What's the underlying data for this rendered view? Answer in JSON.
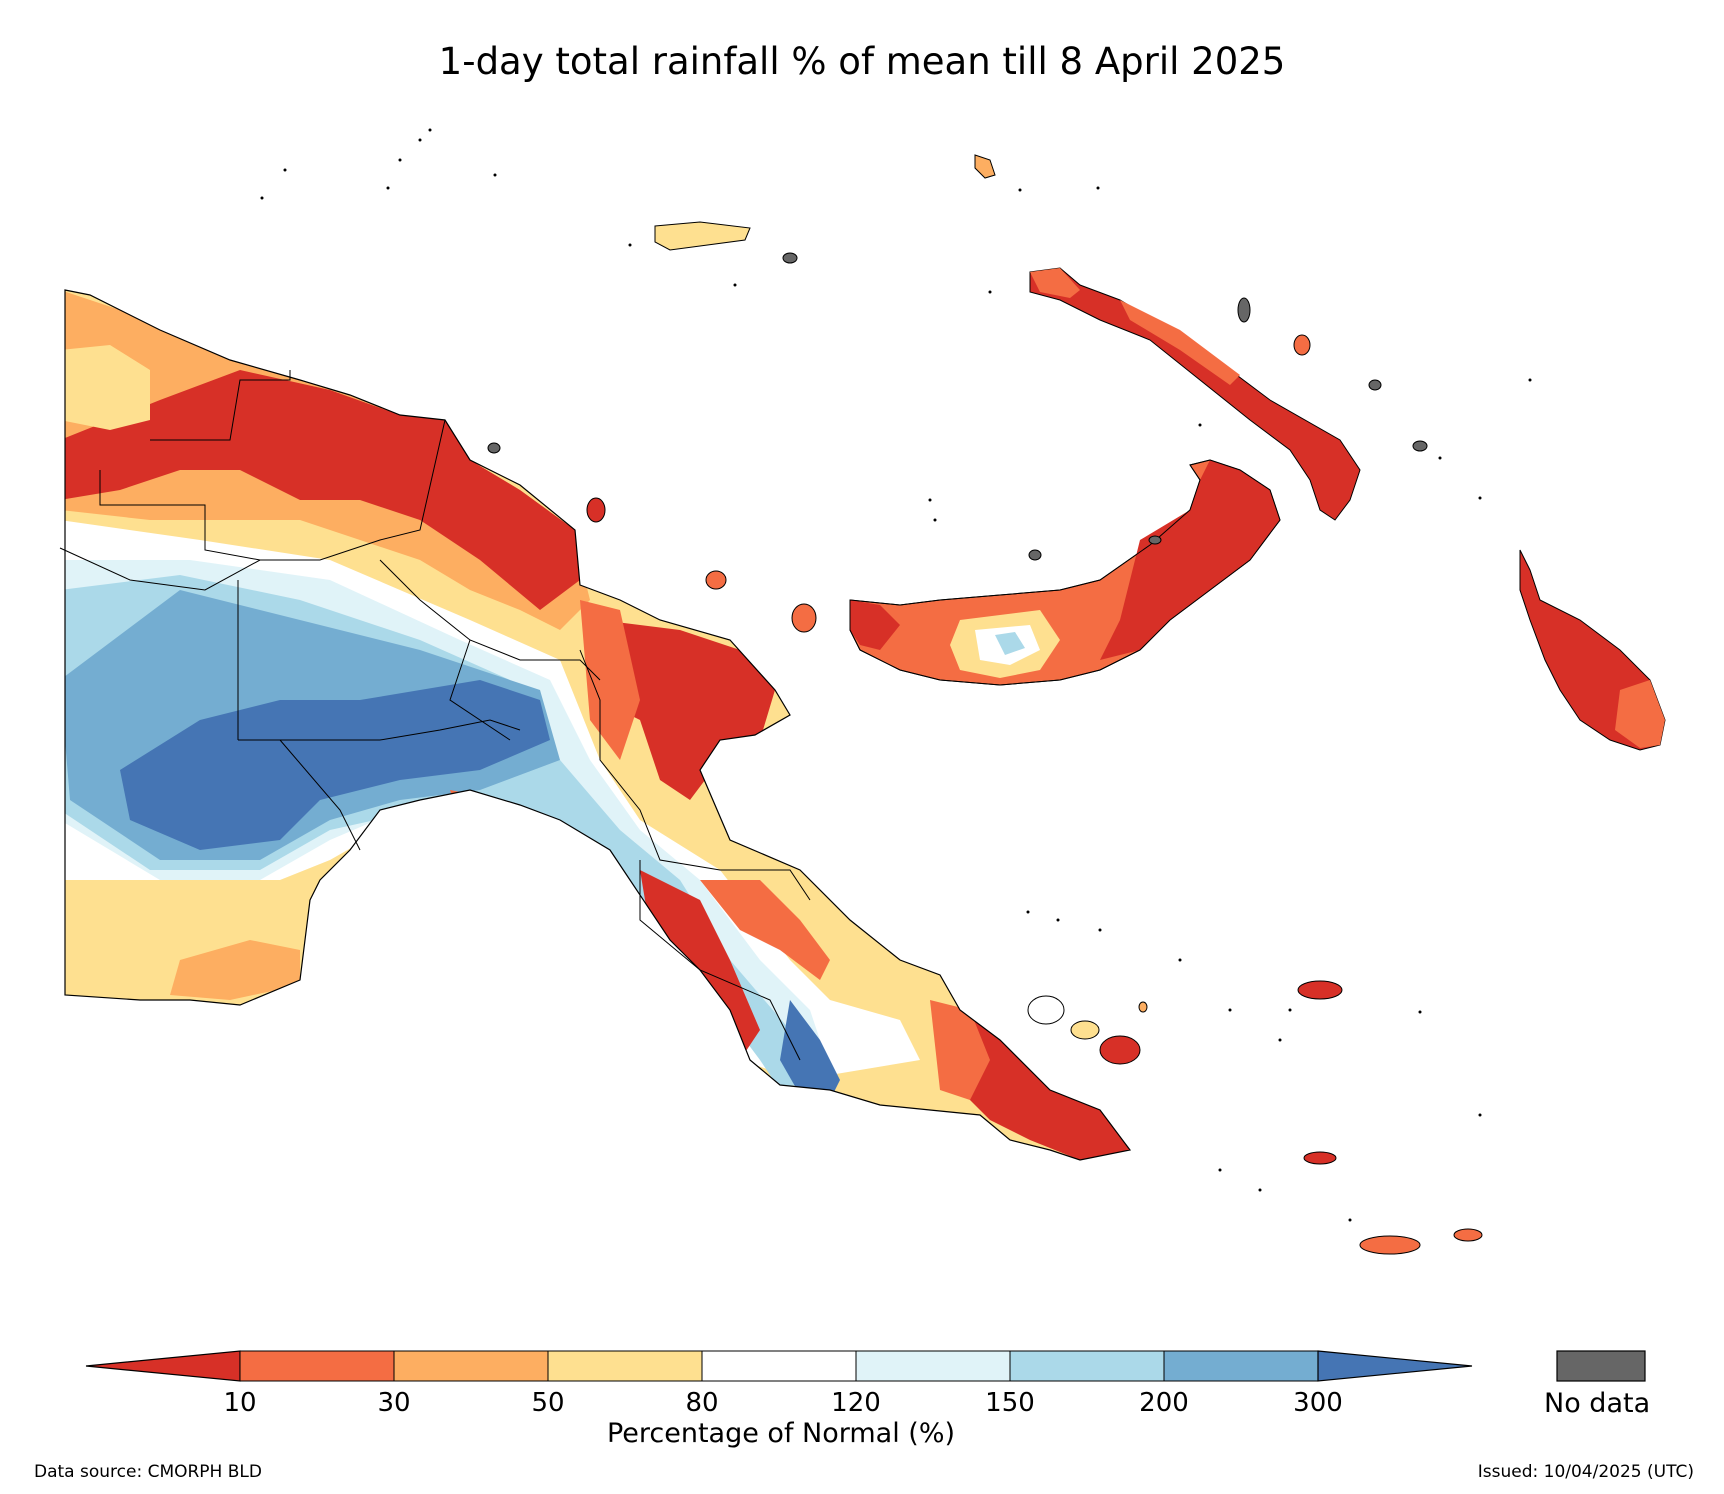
{
  "title": "1-day total rainfall % of mean till 8 April 2025",
  "colorbar": {
    "label": "Percentage of Normal (%)",
    "ticks": [
      "10",
      "30",
      "50",
      "80",
      "120",
      "150",
      "200",
      "300"
    ],
    "colors": [
      "#d73027",
      "#f46d43",
      "#fdae61",
      "#fee090",
      "#ffffff",
      "#e0f3f8",
      "#abd9e9",
      "#74add1",
      "#4575b4"
    ],
    "no_data_label": "No data",
    "no_data_color": "#666666"
  },
  "footer": {
    "source": "Data source: CMORPH BLD",
    "issued": "Issued: 10/04/2025 (UTC)"
  }
}
